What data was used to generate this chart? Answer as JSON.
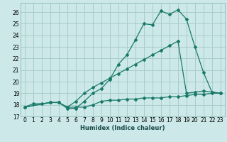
{
  "xlabel": "Humidex (Indice chaleur)",
  "bg_color": "#cce8e8",
  "grid_color": "#aacccc",
  "line_color": "#1a7a6a",
  "xlim": [
    -0.5,
    23.5
  ],
  "ylim": [
    17.0,
    26.8
  ],
  "xticks": [
    0,
    1,
    2,
    3,
    4,
    5,
    6,
    7,
    8,
    9,
    10,
    11,
    12,
    13,
    14,
    15,
    16,
    17,
    18,
    19,
    20,
    21,
    22,
    23
  ],
  "yticks": [
    17,
    18,
    19,
    20,
    21,
    22,
    23,
    24,
    25,
    26
  ],
  "curve1_x": [
    0,
    1,
    2,
    3,
    4,
    5,
    6,
    7,
    8,
    9,
    10,
    11,
    12,
    13,
    14,
    15,
    16,
    17,
    18,
    19,
    20,
    21,
    22,
    23
  ],
  "curve1_y": [
    17.8,
    18.1,
    18.1,
    18.2,
    18.2,
    17.7,
    17.7,
    18.3,
    19.0,
    19.4,
    20.2,
    21.5,
    22.3,
    23.6,
    25.0,
    24.9,
    26.1,
    25.8,
    26.2,
    25.4,
    23.0,
    20.8,
    19.1,
    19.0
  ],
  "curve2_x": [
    0,
    3,
    4,
    5,
    6,
    7,
    8,
    9,
    10,
    11,
    12,
    13,
    14,
    15,
    16,
    17,
    18,
    19,
    20,
    21,
    22,
    23
  ],
  "curve2_y": [
    17.8,
    18.2,
    18.2,
    17.8,
    18.3,
    19.0,
    19.5,
    19.9,
    20.3,
    20.7,
    21.1,
    21.5,
    21.9,
    22.3,
    22.7,
    23.1,
    23.5,
    19.0,
    19.1,
    19.2,
    19.1,
    19.0
  ],
  "curve3_x": [
    0,
    3,
    4,
    5,
    6,
    7,
    8,
    9,
    10,
    11,
    12,
    13,
    14,
    15,
    16,
    17,
    18,
    19,
    20,
    21,
    22,
    23
  ],
  "curve3_y": [
    17.8,
    18.2,
    18.2,
    17.8,
    17.8,
    17.8,
    18.0,
    18.3,
    18.4,
    18.4,
    18.5,
    18.5,
    18.6,
    18.6,
    18.6,
    18.7,
    18.7,
    18.8,
    18.9,
    18.9,
    19.0,
    19.0
  ]
}
